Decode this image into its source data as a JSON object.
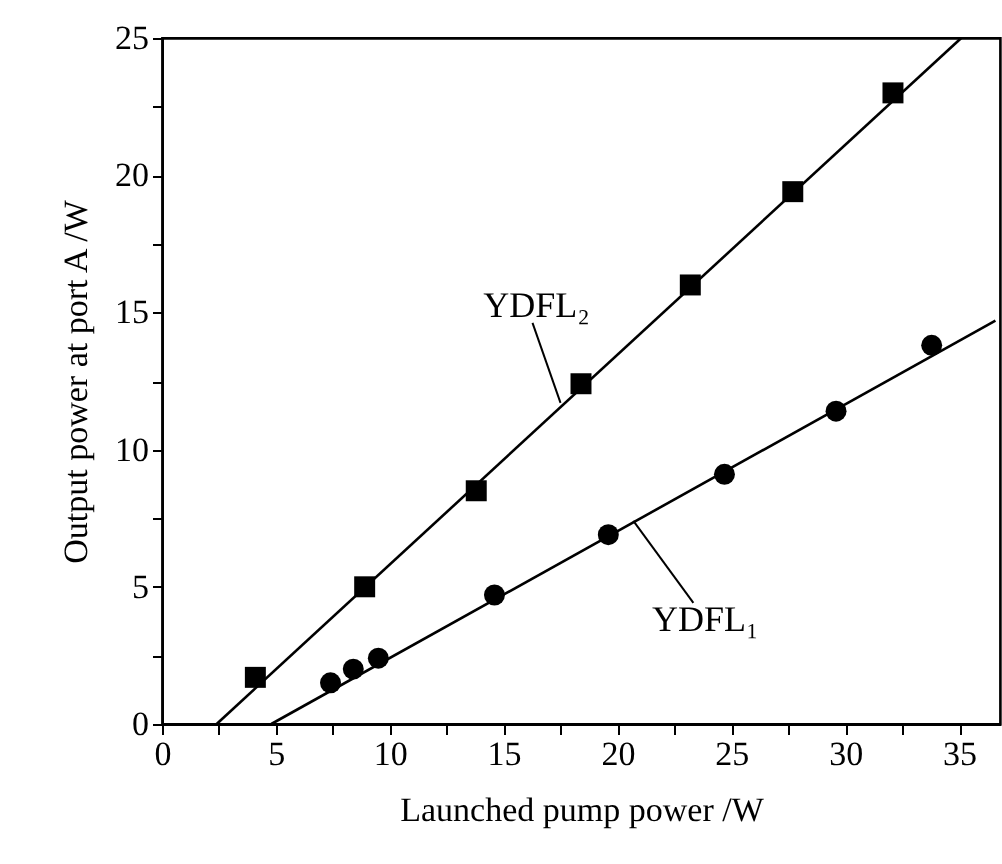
{
  "chart_data": {
    "type": "scatter",
    "xlabel": "Launched pump power /W",
    "ylabel": "Output power at port A /W",
    "xlim": [
      0,
      36.8
    ],
    "ylim": [
      0,
      25
    ],
    "xticks": [
      0,
      {
        "value": 2.5,
        "label": null
      },
      5,
      {
        "value": 7.5,
        "label": null
      },
      10,
      {
        "value": 12.5,
        "label": null
      },
      15,
      {
        "value": 17.5,
        "label": null
      },
      20,
      {
        "value": 22.5,
        "label": null
      },
      25,
      {
        "value": 27.5,
        "label": null
      },
      30,
      {
        "value": 32.5,
        "label": null
      },
      35
    ],
    "yticks": [
      0,
      {
        "value": 2.5,
        "label": null
      },
      5,
      {
        "value": 7.5,
        "label": null
      },
      10,
      {
        "value": 12.5,
        "label": null
      },
      15,
      {
        "value": 17.5,
        "label": null
      },
      20,
      {
        "value": 22.5,
        "label": null
      },
      25
    ],
    "grid": false,
    "series": [
      {
        "marker": "square",
        "color": "#000000",
        "x": [
          4.1,
          8.9,
          13.8,
          18.4,
          23.2,
          27.7,
          32.1
        ],
        "values": [
          1.7,
          5.0,
          8.5,
          12.4,
          16.0,
          19.4,
          23.0
        ]
      },
      {
        "marker": "circle",
        "color": "#000000",
        "x": [
          7.4,
          8.4,
          9.5,
          14.6,
          19.6,
          24.7,
          29.6,
          33.8
        ],
        "values": [
          1.5,
          2.0,
          2.4,
          4.7,
          6.9,
          9.1,
          11.4,
          13.8
        ]
      },
      {
        "type": "line",
        "marker": "none",
        "color": "#000000",
        "x": [
          2.4,
          35.1
        ],
        "values": [
          0,
          25
        ]
      },
      {
        "type": "line",
        "marker": "none",
        "color": "#000000",
        "x": [
          4.8,
          36.6
        ],
        "values": [
          0,
          14.7
        ]
      }
    ],
    "annotations": [
      {
        "text": "YDFL₂",
        "x": 17.5,
        "y": 11.7
      },
      {
        "text": "YDFL₁",
        "x": 20.7,
        "y": 7.4
      }
    ]
  }
}
